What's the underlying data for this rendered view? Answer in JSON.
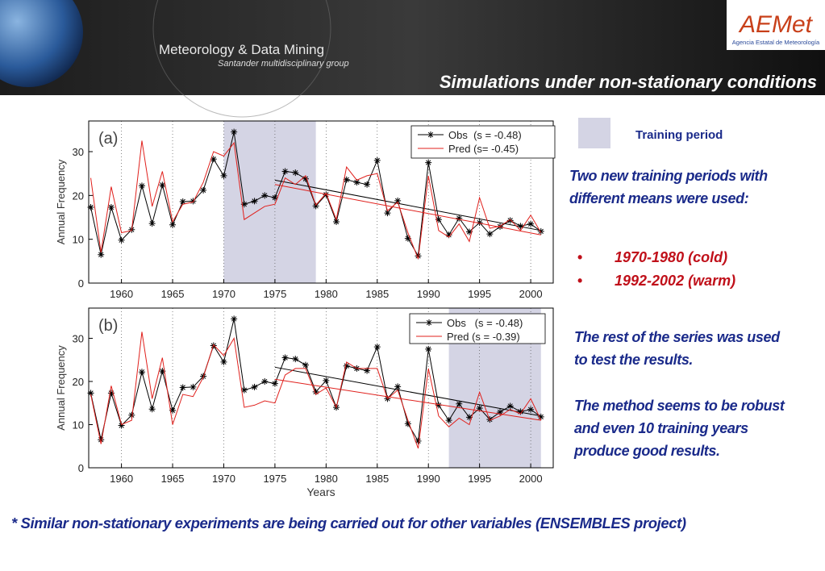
{
  "header": {
    "group": "Meteorology & Data Mining",
    "subgroup": "Santander multidisciplinary group",
    "title": "Simulations under non-stationary conditions",
    "logo": "AEMet",
    "logo_caption": "Agencia Estatal de Meteorología"
  },
  "legend_note": {
    "label": "Training period",
    "color": "#d4d4e4"
  },
  "notes": {
    "intro": "Two new training periods with different means were used:",
    "bullets": [
      "1970-1980 (cold)",
      "1992-2002 (warm)"
    ],
    "test": "The rest of the series was used to test the results.",
    "robust": "The method seems to be robust and even 10 training years produce good results."
  },
  "footer": "* Similar non-stationary experiments are being carried out for other variables (ENSEMBLES project)",
  "chart_data": [
    {
      "type": "line",
      "panel": "(a)",
      "ylabel": "Annual Frequency",
      "x": [
        1957,
        1958,
        1959,
        1960,
        1961,
        1962,
        1963,
        1964,
        1965,
        1966,
        1967,
        1968,
        1969,
        1970,
        1971,
        1972,
        1973,
        1974,
        1975,
        1976,
        1977,
        1978,
        1979,
        1980,
        1981,
        1982,
        1983,
        1984,
        1985,
        1986,
        1987,
        1988,
        1989,
        1990,
        1991,
        1992,
        1993,
        1994,
        1995,
        1996,
        1997,
        1998,
        1999,
        2000,
        2001
      ],
      "shaded": [
        1970,
        1979
      ],
      "trend_x": [
        1975,
        2001
      ],
      "series": [
        {
          "name": "Obs  (s = -0.48)",
          "color": "#000000",
          "marker": "asterisk",
          "values": [
            17.3,
            6.5,
            17.3,
            9.8,
            12.2,
            22.2,
            13.6,
            22.4,
            13.3,
            18.6,
            18.7,
            21.2,
            28.3,
            24.5,
            34.5,
            18,
            18.7,
            20,
            19.5,
            25.5,
            25.2,
            23.8,
            17.6,
            20.2,
            14,
            23.6,
            23,
            22.5,
            28,
            16,
            18.8,
            10.2,
            6.2,
            27.5,
            14.5,
            11,
            14.8,
            11.7,
            13.8,
            11.2,
            12.9,
            14.3,
            13,
            13.5,
            11.8
          ],
          "trend": [
            23.5,
            12
          ]
        },
        {
          "name": "Pred (s= -0.45)",
          "color": "#e0201c",
          "values": [
            24,
            7,
            22,
            11.5,
            12,
            32.5,
            17.5,
            25.5,
            14,
            18,
            18.5,
            23,
            30,
            29,
            32,
            14.5,
            16,
            17.5,
            18,
            24,
            22.5,
            24.5,
            17.8,
            20.5,
            14.5,
            26.5,
            23.5,
            24.5,
            25,
            16.5,
            18.5,
            11.5,
            5.5,
            24.5,
            12,
            10.5,
            13.5,
            9.5,
            19.5,
            12.5,
            13,
            14.5,
            12,
            15.5,
            11.5
          ],
          "trend": [
            22.5,
            11
          ]
        }
      ],
      "xlim": [
        1956.8,
        2002.2
      ],
      "xticks": [
        1960,
        1965,
        1970,
        1975,
        1980,
        1985,
        1990,
        1995,
        2000
      ],
      "ylim": [
        0,
        37
      ],
      "yticks": [
        0,
        10,
        20,
        30
      ],
      "grid": "x"
    },
    {
      "type": "line",
      "panel": "(b)",
      "ylabel": "Annual Frequency",
      "xlabel": "Years",
      "x": [
        1957,
        1958,
        1959,
        1960,
        1961,
        1962,
        1963,
        1964,
        1965,
        1966,
        1967,
        1968,
        1969,
        1970,
        1971,
        1972,
        1973,
        1974,
        1975,
        1976,
        1977,
        1978,
        1979,
        1980,
        1981,
        1982,
        1983,
        1984,
        1985,
        1986,
        1987,
        1988,
        1989,
        1990,
        1991,
        1992,
        1993,
        1994,
        1995,
        1996,
        1997,
        1998,
        1999,
        2000,
        2001
      ],
      "shaded": [
        1992,
        2001
      ],
      "trend_x": [
        1975,
        2001
      ],
      "series": [
        {
          "name": "Obs   (s = -0.48)",
          "color": "#000000",
          "marker": "asterisk",
          "values": [
            17.3,
            6.5,
            17.3,
            9.8,
            12.2,
            22.2,
            13.6,
            22.4,
            13.3,
            18.6,
            18.7,
            21.2,
            28.3,
            24.5,
            34.5,
            18,
            18.7,
            20,
            19.5,
            25.5,
            25.2,
            23.8,
            17.6,
            20.2,
            14,
            23.6,
            23,
            22.5,
            28,
            16,
            18.8,
            10.2,
            6.2,
            27.5,
            14.5,
            11,
            14.8,
            11.7,
            13.8,
            11.2,
            12.9,
            14.3,
            13,
            13.5,
            11.8
          ],
          "trend": [
            23.3,
            12
          ]
        },
        {
          "name": "Pred (s = -0.39)",
          "color": "#e0201c",
          "values": [
            17,
            5.5,
            19,
            10,
            11,
            31.5,
            16,
            25.5,
            10,
            17,
            16.5,
            21,
            28.5,
            26,
            30,
            14,
            14.5,
            15.5,
            15,
            21.5,
            23,
            23,
            17,
            18.5,
            14,
            24.5,
            23,
            23,
            23,
            16,
            18,
            11,
            4.5,
            23,
            12,
            9.5,
            11.5,
            10,
            17.5,
            11,
            12,
            13.5,
            12.5,
            16,
            11
          ],
          "trend": [
            20.5,
            11
          ]
        }
      ],
      "xlim": [
        1956.8,
        2002.2
      ],
      "xticks": [
        1960,
        1965,
        1970,
        1975,
        1980,
        1985,
        1990,
        1995,
        2000
      ],
      "ylim": [
        0,
        37
      ],
      "yticks": [
        0,
        10,
        20,
        30
      ],
      "grid": "x"
    }
  ]
}
